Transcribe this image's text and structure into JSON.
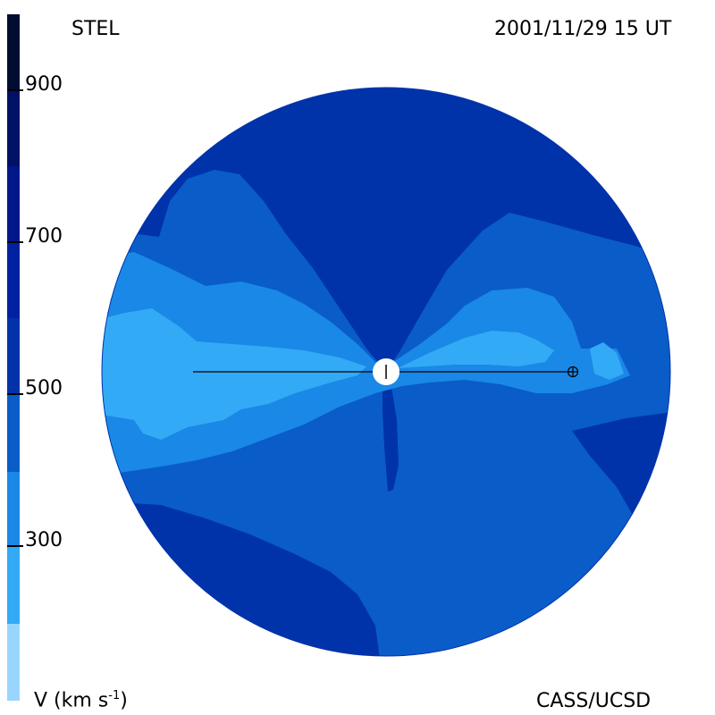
{
  "header": {
    "left_title": "STEL",
    "right_title": "2001/11/29 15 UT"
  },
  "footer": {
    "left_label": "V (km s",
    "left_label_sup": "-1",
    "left_label_close": ")",
    "right_label": "CASS/UCSD"
  },
  "colorbar": {
    "tick_labels": [
      "900",
      "700",
      "500",
      "300"
    ],
    "segments": [
      {
        "range": "900-1000",
        "color": "#000d33"
      },
      {
        "range": "800-900",
        "color": "#001166"
      },
      {
        "range": "700-800",
        "color": "#00188a"
      },
      {
        "range": "600-700",
        "color": "#0022a0"
      },
      {
        "range": "500-600",
        "color": "#0033aa"
      },
      {
        "range": "400-500",
        "color": "#0a5cc9"
      },
      {
        "range": "300-400",
        "color": "#1a88e6"
      },
      {
        "range": "200-300",
        "color": "#33aaf5"
      },
      {
        "range": "100-200",
        "color": "#99d6ff"
      }
    ]
  },
  "map": {
    "regions": [
      "fast wind cap",
      "slow wind band",
      "very slow wind band",
      "sun",
      "earth"
    ],
    "colors": {
      "fast": "#0033aa",
      "medium": "#0a5cc9",
      "slow": "#1a88e6",
      "very_slow": "#33aaf5",
      "sun": "#ffffff",
      "line": "#000000"
    },
    "icons": [
      "sun-icon",
      "earth-icon"
    ]
  }
}
